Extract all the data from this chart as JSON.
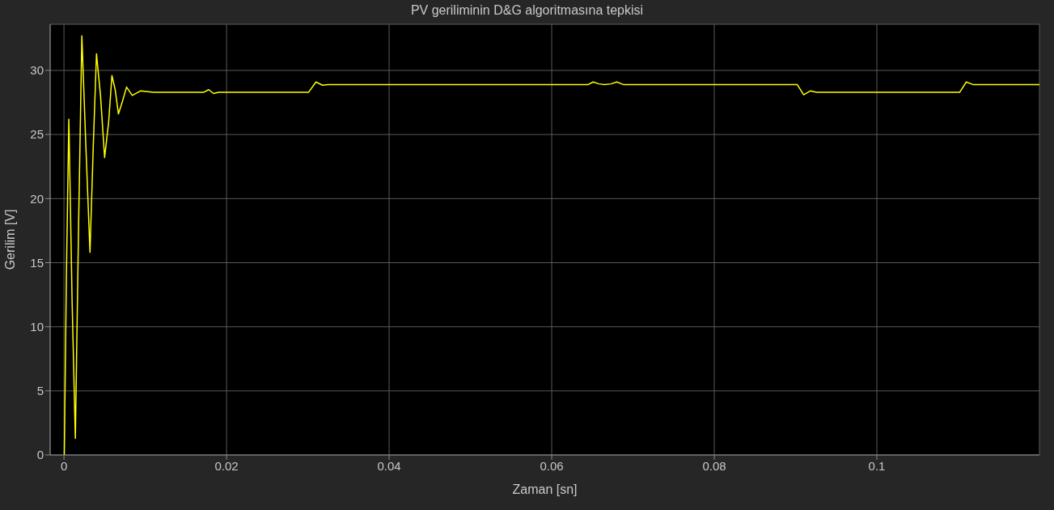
{
  "chart_data": {
    "type": "line",
    "title": "PV geriliminin D&G algoritmasına tepkisi",
    "xlabel": "Zaman [sn]",
    "ylabel": "Gerilim [V]",
    "xlim": [
      -0.0017,
      0.12
    ],
    "xticks": [
      0,
      0.02,
      0.04,
      0.06,
      0.08,
      0.1
    ],
    "ylim": [
      0,
      33.6
    ],
    "yticks": [
      0,
      5,
      10,
      15,
      20,
      25,
      30
    ],
    "grid": true,
    "marker": "none",
    "line_style": "solid",
    "series": [
      {
        "color": "#ffff00",
        "x": [
          4e-05,
          0.0003,
          0.0006,
          0.001,
          0.0014,
          0.0018,
          0.0022,
          0.0027,
          0.0032,
          0.0036,
          0.004,
          0.0045,
          0.005,
          0.0055,
          0.0059,
          0.0063,
          0.0067,
          0.0072,
          0.0077,
          0.0084,
          0.0094,
          0.011,
          0.014,
          0.0172,
          0.0178,
          0.0184,
          0.019,
          0.022,
          0.026,
          0.0301,
          0.031,
          0.0318,
          0.0325,
          0.04,
          0.05,
          0.06,
          0.0645,
          0.0651,
          0.0658,
          0.0665,
          0.0673,
          0.068,
          0.0688,
          0.075,
          0.085,
          0.0902,
          0.091,
          0.0918,
          0.0926,
          0.1,
          0.1102,
          0.111,
          0.1118,
          0.115,
          0.12
        ],
        "values": [
          0,
          14,
          26.2,
          12,
          1.3,
          18,
          32.7,
          24,
          15.8,
          24,
          31.3,
          28,
          23.2,
          26,
          29.6,
          28.5,
          26.6,
          27.6,
          28.7,
          28.05,
          28.4,
          28.3,
          28.3,
          28.3,
          28.5,
          28.2,
          28.3,
          28.3,
          28.3,
          28.3,
          29.1,
          28.85,
          28.9,
          28.9,
          28.9,
          28.9,
          28.9,
          29.1,
          28.95,
          28.9,
          28.95,
          29.1,
          28.9,
          28.9,
          28.9,
          28.9,
          28.1,
          28.4,
          28.3,
          28.3,
          28.3,
          29.1,
          28.9,
          28.9,
          28.9
        ]
      }
    ]
  }
}
